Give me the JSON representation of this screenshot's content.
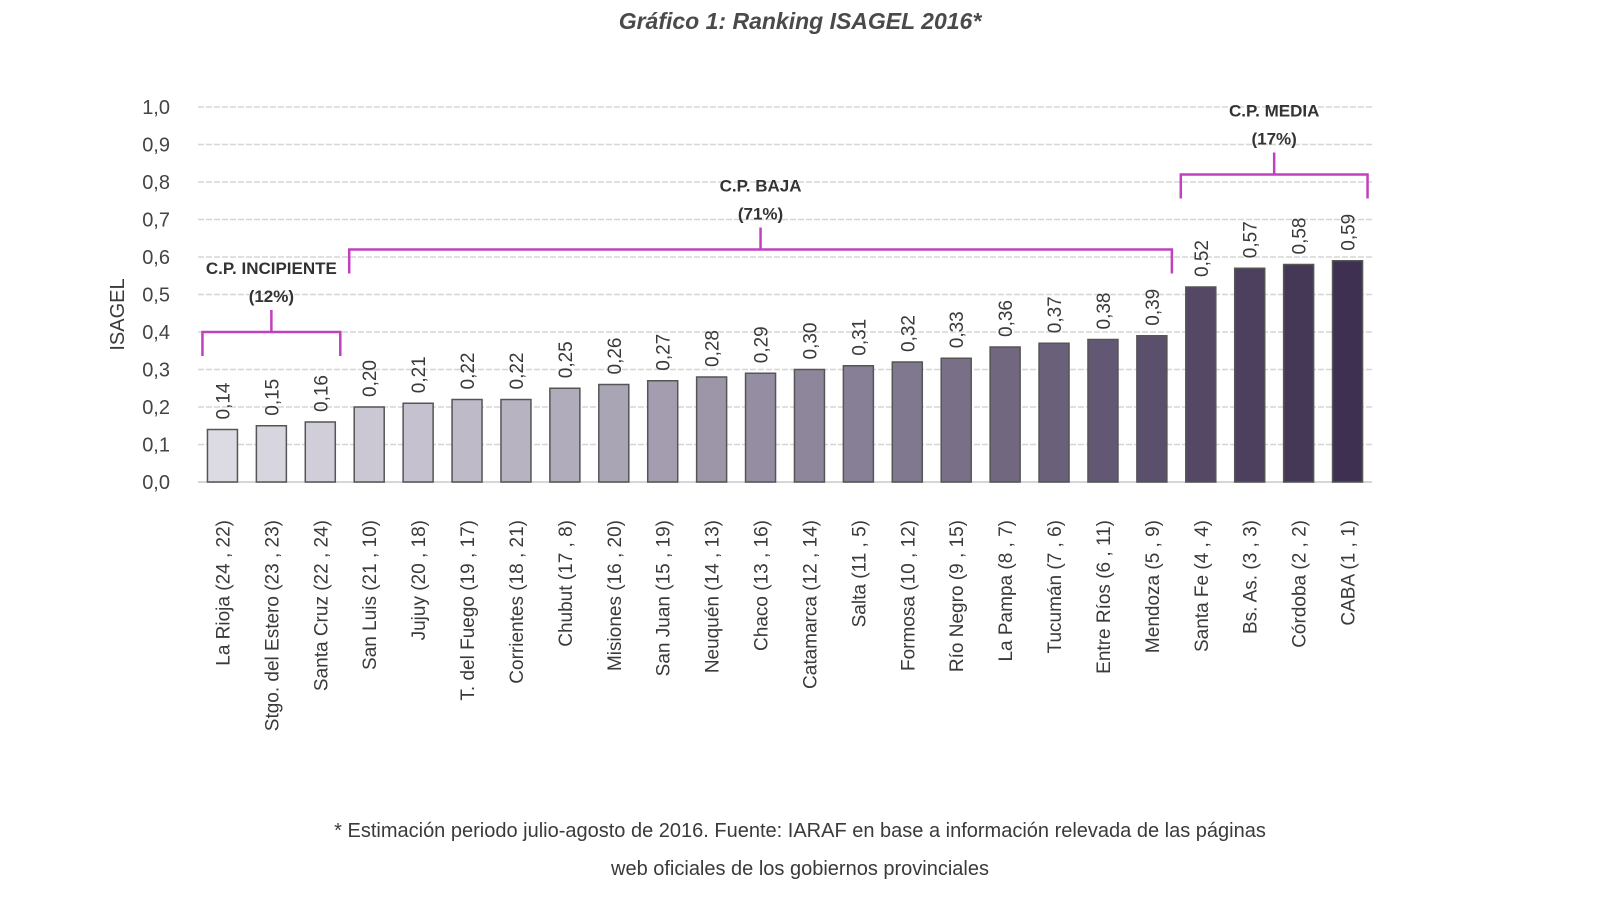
{
  "chart_data": {
    "type": "bar",
    "title": "Gráfico 1: Ranking ISAGEL 2016*",
    "xlabel": "",
    "ylabel": "ISAGEL",
    "ylim": [
      0,
      1.0
    ],
    "yticks": [
      "0,0",
      "0,1",
      "0,2",
      "0,3",
      "0,4",
      "0,5",
      "0,6",
      "0,7",
      "0,8",
      "0,9",
      "1,0"
    ],
    "grid": true,
    "categories": [
      "La Rioja (24 , 22)",
      "Stgo. del Estero (23 , 23)",
      "Santa Cruz (22 , 24)",
      "San Luis (21 , 10)",
      "Jujuy (20 , 18)",
      "T. del Fuego (19 , 17)",
      "Corrientes (18 , 21)",
      "Chubut (17 , 8)",
      "Misiones (16 , 20)",
      "San Juan (15 , 19)",
      "Neuquén (14 , 13)",
      "Chaco (13 , 16)",
      "Catamarca (12 , 14)",
      "Salta (11 , 5)",
      "Formosa (10 , 12)",
      "Río Negro (9 , 15)",
      "La Pampa (8 , 7)",
      "Tucumán (7 , 6)",
      "Entre Ríos (6 , 11)",
      "Mendoza (5 , 9)",
      "Santa Fe (4 , 4)",
      "Bs. As. (3 , 3)",
      "Córdoba (2 , 2)",
      "CABA (1 , 1)"
    ],
    "values": [
      0.14,
      0.15,
      0.16,
      0.2,
      0.21,
      0.22,
      0.22,
      0.25,
      0.26,
      0.27,
      0.28,
      0.29,
      0.3,
      0.31,
      0.32,
      0.33,
      0.36,
      0.37,
      0.38,
      0.39,
      0.52,
      0.57,
      0.58,
      0.59
    ],
    "value_labels": [
      "0,14",
      "0,15",
      "0,16",
      "0,20",
      "0,21",
      "0,22",
      "0,22",
      "0,25",
      "0,26",
      "0,27",
      "0,28",
      "0,29",
      "0,30",
      "0,31",
      "0,32",
      "0,33",
      "0,36",
      "0,37",
      "0,38",
      "0,39",
      "0,52",
      "0,57",
      "0,58",
      "0,59"
    ],
    "bar_color_start": "#dcdae3",
    "bar_color_end": "#3d3050",
    "groups": [
      {
        "name": "C.P. INCIPIENTE",
        "share": "(12%)",
        "from": 0,
        "to": 2,
        "bracket_level": 0.4
      },
      {
        "name": "C.P. BAJA",
        "share": "(71%)",
        "from": 3,
        "to": 19,
        "bracket_level": 0.62
      },
      {
        "name": "C.P. MEDIA",
        "share": "(17%)",
        "from": 20,
        "to": 23,
        "bracket_level": 0.82
      }
    ],
    "bracket_color": "#c040c0"
  },
  "footnote": {
    "line1": "* Estimación periodo julio-agosto de 2016. Fuente: IARAF en base a información relevada de las páginas",
    "line2": "web oficiales de los gobiernos provinciales"
  }
}
